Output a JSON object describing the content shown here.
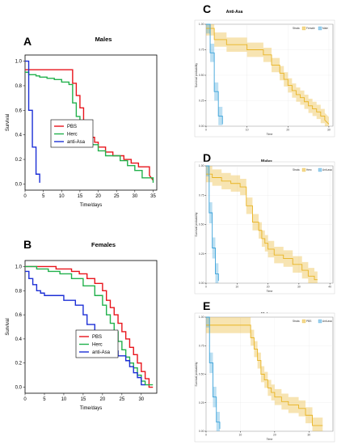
{
  "chart_data": [
    {
      "panel": "A",
      "title": "Males",
      "type": "line",
      "xlabel": "Time/days",
      "ylabel": "Survival",
      "xlim": [
        0,
        36
      ],
      "ylim": [
        -0.05,
        1.05
      ],
      "xticks": [
        0,
        5,
        10,
        15,
        20,
        25,
        30,
        35
      ],
      "yticks": [
        0.0,
        0.2,
        0.4,
        0.6,
        0.8,
        1.0
      ],
      "legend": "center-left",
      "series": [
        {
          "name": "PBS",
          "color": "#e8141b",
          "x": [
            0,
            13,
            13,
            14,
            14,
            15,
            15,
            16,
            16,
            17,
            17,
            18,
            18,
            19,
            19,
            20,
            20,
            22,
            22,
            24,
            24,
            27,
            27,
            29,
            29,
            31,
            31,
            34,
            34,
            35
          ],
          "y": [
            0.93,
            0.93,
            0.82,
            0.82,
            0.72,
            0.72,
            0.62,
            0.62,
            0.5,
            0.5,
            0.45,
            0.45,
            0.38,
            0.38,
            0.34,
            0.34,
            0.3,
            0.3,
            0.26,
            0.26,
            0.23,
            0.23,
            0.2,
            0.2,
            0.17,
            0.17,
            0.14,
            0.14,
            0.07,
            0.03
          ]
        },
        {
          "name": "Herc",
          "color": "#22b14c",
          "x": [
            0,
            1,
            1,
            3,
            3,
            4,
            4,
            6,
            6,
            8,
            8,
            10,
            10,
            12,
            12,
            13,
            13,
            14,
            14,
            15,
            15,
            16,
            16,
            17,
            17,
            18,
            18,
            20,
            20,
            22,
            22,
            26,
            26,
            28,
            28,
            30,
            30,
            32,
            32,
            35,
            35
          ],
          "y": [
            0.91,
            0.91,
            0.89,
            0.89,
            0.88,
            0.88,
            0.87,
            0.87,
            0.86,
            0.86,
            0.85,
            0.85,
            0.83,
            0.83,
            0.81,
            0.81,
            0.66,
            0.66,
            0.55,
            0.55,
            0.48,
            0.48,
            0.41,
            0.41,
            0.36,
            0.36,
            0.32,
            0.32,
            0.27,
            0.27,
            0.23,
            0.23,
            0.19,
            0.19,
            0.15,
            0.15,
            0.11,
            0.11,
            0.05,
            0.05,
            0.01
          ]
        },
        {
          "name": "anti-Asa",
          "color": "#1c2fd6",
          "x": [
            0,
            1,
            1,
            2,
            2,
            3,
            3,
            4,
            4
          ],
          "y": [
            1.0,
            1.0,
            0.6,
            0.6,
            0.3,
            0.3,
            0.08,
            0.08,
            0.01
          ]
        }
      ]
    },
    {
      "panel": "B",
      "title": "Females",
      "type": "line",
      "xlabel": "Time/days",
      "ylabel": "Survival",
      "xlim": [
        0,
        34
      ],
      "ylim": [
        -0.05,
        1.05
      ],
      "xticks": [
        0,
        5,
        10,
        15,
        20,
        25,
        30
      ],
      "yticks": [
        0.0,
        0.2,
        0.4,
        0.6,
        0.8,
        1.0
      ],
      "legend": "center-right",
      "series": [
        {
          "name": "PBS",
          "color": "#e8141b",
          "x": [
            0,
            8,
            8,
            12,
            12,
            14,
            14,
            16,
            16,
            18,
            18,
            20,
            20,
            21,
            21,
            22,
            22,
            23,
            23,
            24,
            24,
            25,
            25,
            26,
            26,
            27,
            27,
            28,
            28,
            29,
            29,
            30,
            30,
            31,
            31,
            32,
            32,
            33
          ],
          "y": [
            1.0,
            1.0,
            0.98,
            0.98,
            0.96,
            0.96,
            0.94,
            0.94,
            0.9,
            0.9,
            0.86,
            0.86,
            0.8,
            0.8,
            0.72,
            0.72,
            0.66,
            0.66,
            0.6,
            0.6,
            0.53,
            0.53,
            0.46,
            0.46,
            0.4,
            0.4,
            0.33,
            0.33,
            0.27,
            0.27,
            0.2,
            0.2,
            0.13,
            0.13,
            0.07,
            0.07,
            0.0,
            0.0
          ]
        },
        {
          "name": "Herc",
          "color": "#22b14c",
          "x": [
            0,
            3,
            3,
            6,
            6,
            9,
            9,
            12,
            12,
            15,
            15,
            18,
            18,
            20,
            20,
            21,
            21,
            22,
            22,
            23,
            23,
            24,
            24,
            25,
            25,
            26,
            26,
            27,
            27,
            28,
            28,
            29,
            29,
            30,
            30,
            31,
            31,
            33
          ],
          "y": [
            1.0,
            1.0,
            0.98,
            0.98,
            0.96,
            0.96,
            0.94,
            0.94,
            0.9,
            0.9,
            0.84,
            0.84,
            0.76,
            0.76,
            0.68,
            0.68,
            0.6,
            0.6,
            0.53,
            0.53,
            0.46,
            0.46,
            0.38,
            0.38,
            0.31,
            0.31,
            0.25,
            0.25,
            0.2,
            0.2,
            0.16,
            0.16,
            0.1,
            0.1,
            0.05,
            0.05,
            0.02,
            0.02
          ]
        },
        {
          "name": "anti-Asa",
          "color": "#1c2fd6",
          "x": [
            0,
            1,
            1,
            2,
            2,
            3,
            3,
            4,
            4,
            5,
            5,
            10,
            10,
            13,
            13,
            15,
            15,
            16,
            16,
            18,
            18,
            19,
            19,
            20,
            20,
            22,
            22,
            24,
            24,
            26,
            26,
            27,
            27,
            28,
            28,
            29,
            29,
            30,
            30,
            31
          ],
          "y": [
            0.96,
            0.96,
            0.9,
            0.9,
            0.85,
            0.85,
            0.8,
            0.8,
            0.78,
            0.78,
            0.76,
            0.76,
            0.72,
            0.72,
            0.68,
            0.68,
            0.6,
            0.6,
            0.52,
            0.52,
            0.46,
            0.46,
            0.4,
            0.4,
            0.33,
            0.33,
            0.3,
            0.3,
            0.26,
            0.26,
            0.22,
            0.22,
            0.17,
            0.17,
            0.12,
            0.12,
            0.08,
            0.08,
            0.02,
            0.02
          ]
        }
      ]
    },
    {
      "panel": "C",
      "title": "Anti-Asa",
      "type": "line",
      "xlabel": "Time",
      "ylabel": "Survival probability",
      "xlim": [
        0,
        31
      ],
      "ylim": [
        0,
        1
      ],
      "xticks": [
        0,
        10,
        20,
        30
      ],
      "xticklabels": [
        "0",
        "10",
        "20",
        "30"
      ],
      "yticks": [
        0,
        0.25,
        0.5,
        0.75,
        1.0
      ],
      "yticklabels": [
        "0.00",
        "0.25",
        "0.50",
        "0.75",
        "1.00"
      ],
      "legend_title": "Strata",
      "legend": "top-right",
      "series": [
        {
          "name": "Female",
          "color": "#e8b321",
          "band": 0.07,
          "x": [
            0,
            2,
            2,
            5,
            5,
            10,
            10,
            14,
            14,
            16,
            16,
            18,
            18,
            19,
            19,
            20,
            20,
            21,
            21,
            22,
            22,
            23,
            23,
            24,
            24,
            25,
            25,
            26,
            26,
            27,
            27,
            28,
            28,
            29,
            29,
            30
          ],
          "y": [
            0.96,
            0.96,
            0.85,
            0.85,
            0.8,
            0.8,
            0.75,
            0.75,
            0.7,
            0.7,
            0.6,
            0.6,
            0.52,
            0.52,
            0.46,
            0.46,
            0.4,
            0.4,
            0.35,
            0.35,
            0.31,
            0.31,
            0.28,
            0.28,
            0.24,
            0.24,
            0.2,
            0.2,
            0.17,
            0.17,
            0.14,
            0.14,
            0.1,
            0.1,
            0.06,
            0.02
          ]
        },
        {
          "name": "Male",
          "color": "#3ba2d9",
          "band": 0.09,
          "x": [
            0,
            1,
            1,
            2,
            2,
            3,
            3,
            4,
            4
          ],
          "y": [
            1.0,
            1.0,
            0.72,
            0.72,
            0.34,
            0.34,
            0.1,
            0.1,
            0.02
          ]
        }
      ]
    },
    {
      "panel": "D",
      "title": "Males",
      "type": "line",
      "xlabel": "Time",
      "ylabel": "Survival probability",
      "xlim": [
        0,
        41
      ],
      "ylim": [
        0,
        1
      ],
      "xticks": [
        0,
        10,
        20,
        30,
        40
      ],
      "xticklabels": [
        "0",
        "10",
        "20",
        "30",
        "40"
      ],
      "yticks": [
        0,
        0.25,
        0.5,
        0.75,
        1.0
      ],
      "yticklabels": [
        "0.00",
        "0.25",
        "0.50",
        "0.75",
        "1.00"
      ],
      "legend_title": "Strata",
      "legend": "top-right",
      "series": [
        {
          "name": "Herc",
          "color": "#e8b321",
          "band": 0.07,
          "x": [
            0,
            2,
            2,
            5,
            5,
            8,
            8,
            11,
            11,
            13,
            13,
            15,
            15,
            17,
            17,
            18,
            18,
            19,
            19,
            20,
            20,
            22,
            22,
            25,
            25,
            28,
            28,
            31,
            31,
            33,
            33,
            35,
            35,
            36
          ],
          "y": [
            0.93,
            0.93,
            0.9,
            0.9,
            0.87,
            0.87,
            0.85,
            0.85,
            0.82,
            0.82,
            0.66,
            0.66,
            0.52,
            0.52,
            0.45,
            0.45,
            0.38,
            0.38,
            0.34,
            0.34,
            0.29,
            0.29,
            0.24,
            0.24,
            0.21,
            0.21,
            0.16,
            0.16,
            0.11,
            0.11,
            0.06,
            0.06,
            0.03,
            0.03
          ]
        },
        {
          "name": "Anti-asa",
          "color": "#3ba2d9",
          "band": 0.09,
          "x": [
            0,
            1,
            1,
            2,
            2,
            3,
            3,
            4,
            4
          ],
          "y": [
            1.0,
            1.0,
            0.6,
            0.6,
            0.3,
            0.3,
            0.08,
            0.08,
            0.02
          ]
        }
      ]
    },
    {
      "panel": "E",
      "title": "Males",
      "type": "line",
      "xlabel": "Time",
      "ylabel": "Survival probability",
      "xlim": [
        0,
        37
      ],
      "ylim": [
        0,
        1
      ],
      "xticks": [
        0,
        10,
        20,
        30
      ],
      "xticklabels": [
        "0",
        "10",
        "20",
        "30"
      ],
      "yticks": [
        0,
        0.25,
        0.5,
        0.75,
        1.0
      ],
      "yticklabels": [
        "0.00",
        "0.25",
        "0.50",
        "0.75",
        "1.00"
      ],
      "legend_title": "Strata",
      "legend": "top-right",
      "series": [
        {
          "name": "PBS",
          "color": "#e8b321",
          "band": 0.07,
          "x": [
            0,
            13,
            13,
            14,
            14,
            15,
            15,
            16,
            16,
            17,
            17,
            18,
            18,
            19,
            19,
            20,
            20,
            22,
            22,
            24,
            24,
            27,
            27,
            29,
            29,
            31,
            31,
            34
          ],
          "y": [
            0.93,
            0.93,
            0.82,
            0.82,
            0.72,
            0.72,
            0.62,
            0.62,
            0.5,
            0.5,
            0.45,
            0.45,
            0.38,
            0.38,
            0.34,
            0.34,
            0.3,
            0.3,
            0.26,
            0.26,
            0.23,
            0.23,
            0.2,
            0.2,
            0.14,
            0.14,
            0.05,
            0.05
          ]
        },
        {
          "name": "Anti-asa",
          "color": "#3ba2d9",
          "band": 0.09,
          "x": [
            0,
            1,
            1,
            2,
            2,
            3,
            3,
            4,
            4
          ],
          "y": [
            1.0,
            1.0,
            0.6,
            0.6,
            0.3,
            0.3,
            0.08,
            0.08,
            0.02
          ]
        }
      ]
    }
  ]
}
